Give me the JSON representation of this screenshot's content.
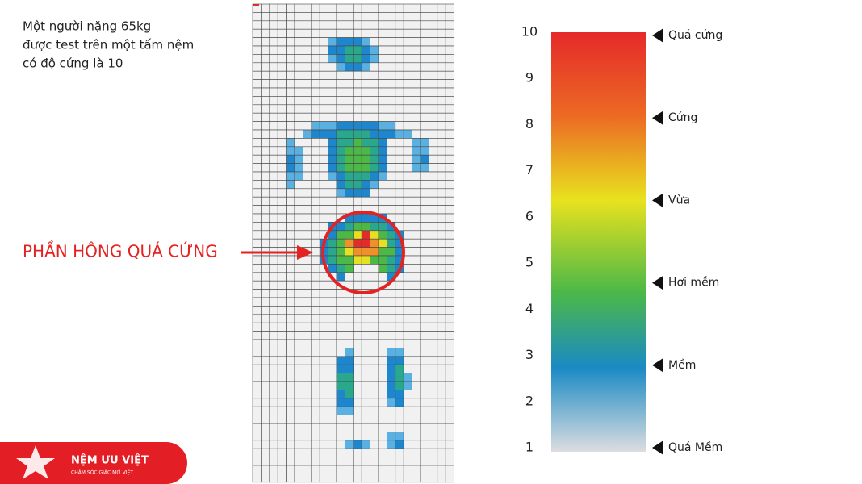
{
  "description": [
    "Một người nặng 65kg",
    "được test trên một tấm nệm",
    "có độ cứng là 10"
  ],
  "callout": "PHẦN HÔNG QUÁ CỨNG",
  "scale": {
    "ticks": [
      10,
      9,
      8,
      7,
      6,
      5,
      4,
      3,
      2,
      1
    ],
    "labels": [
      "Quá cứng",
      "Cứng",
      "Vừa",
      "Hơi mềm",
      "Mềm",
      "Quá Mềm"
    ]
  },
  "logo": {
    "name": "NỆM ƯU VIỆT",
    "tagline": "CHĂM SÓC GIẤC MƠ VIỆT"
  }
}
